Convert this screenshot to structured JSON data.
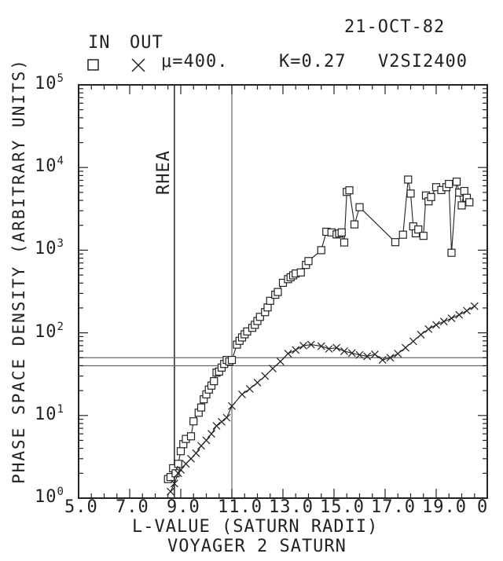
{
  "header": {
    "date": "21-OCT-82",
    "legend_in": "IN",
    "legend_out": "OUT",
    "mu": "μ=400.",
    "k": "K=0.27",
    "id": "V2SI2400"
  },
  "chart_data": {
    "type": "scatter",
    "title": "VOYAGER 2 SATURN",
    "xlabel": "L-VALUE (SATURN RADII)",
    "ylabel": "PHASE SPACE DENSITY (ARBITRARY UNITS)",
    "xlim": [
      5.0,
      21.0
    ],
    "ylim": [
      1,
      100000
    ],
    "y_scale": "log",
    "x_ticks": [
      "5.0",
      "7.0",
      "9.0",
      "11.0",
      "13.0",
      "15.0",
      "17.0",
      "19.0"
    ],
    "y_ticks": [
      {
        "base": "10",
        "exp": "0"
      },
      {
        "base": "10",
        "exp": "1"
      },
      {
        "base": "10",
        "exp": "2"
      },
      {
        "base": "10",
        "exp": "3"
      },
      {
        "base": "10",
        "exp": "4"
      },
      {
        "base": "10",
        "exp": "5"
      }
    ],
    "annotations": {
      "rhea": {
        "label": "RHEA",
        "x": 8.75
      },
      "vline2": {
        "x": 11.0
      },
      "hlines": [
        50,
        40
      ]
    },
    "series": [
      {
        "name": "IN",
        "marker": "square",
        "x": [
          8.5,
          8.6,
          8.7,
          8.8,
          8.9,
          9.0,
          9.1,
          9.2,
          9.4,
          9.5,
          9.7,
          9.8,
          9.9,
          10.0,
          10.1,
          10.2,
          10.3,
          10.4,
          10.5,
          10.6,
          10.7,
          10.8,
          10.9,
          11.0,
          11.2,
          11.3,
          11.4,
          11.5,
          11.6,
          11.8,
          11.9,
          12.0,
          12.1,
          12.3,
          12.4,
          12.5,
          12.7,
          12.8,
          13.0,
          13.2,
          13.3,
          13.4,
          13.5,
          13.7,
          13.9,
          14.0,
          14.5,
          14.7,
          14.9,
          15.1,
          15.2,
          15.3,
          15.4,
          15.5,
          15.6,
          15.8,
          16.0,
          17.4,
          17.7,
          17.9,
          18.0,
          18.1,
          18.2,
          18.3,
          18.5,
          18.6,
          18.7,
          18.8,
          19.0,
          19.2,
          19.4,
          19.5,
          19.6,
          19.8,
          19.9,
          20.0,
          20.1,
          20.2,
          20.3
        ],
        "y": [
          1.7,
          1.8,
          2.3,
          2.0,
          2.6,
          3.7,
          4.5,
          5.2,
          5.6,
          8.5,
          10.8,
          12.5,
          15.7,
          18.0,
          20.6,
          23.0,
          26.0,
          33.0,
          34.0,
          38.0,
          42.0,
          47.0,
          45.0,
          47.0,
          72.0,
          80.0,
          88.0,
          96.0,
          104.0,
          115.0,
          125.0,
          139.0,
          156.0,
          178.0,
          203.0,
          244.0,
          289.0,
          312.0,
          403.0,
          446.0,
          470.0,
          496.0,
          522.0,
          538.0,
          663.0,
          738.0,
          1000.0,
          1670.0,
          1640.0,
          1550.0,
          1590.0,
          1640.0,
          1240.0,
          5070.0,
          5300.0,
          2050.0,
          3310.0,
          1250.0,
          1540.0,
          7150.0,
          4840.0,
          1940.0,
          1600.0,
          1780.0,
          1490.0,
          4590.0,
          3900.0,
          4390.0,
          5780.0,
          5340.0,
          5780.0,
          6330.0,
          930.0,
          6740.0,
          4980.0,
          3480.0,
          5200.0,
          4300.0,
          3800.0
        ]
      },
      {
        "name": "OUT",
        "marker": "x",
        "x": [
          8.6,
          8.75,
          8.9,
          9.0,
          9.2,
          9.4,
          9.6,
          9.8,
          10.0,
          10.2,
          10.4,
          10.6,
          10.8,
          11.0,
          11.4,
          11.7,
          12.0,
          12.3,
          12.6,
          12.9,
          13.2,
          13.5,
          13.8,
          14.1,
          14.5,
          14.8,
          15.1,
          15.4,
          15.7,
          16.0,
          16.3,
          16.6,
          16.9,
          17.2,
          17.5,
          17.8,
          18.1,
          18.4,
          18.7,
          19.0,
          19.3,
          19.6,
          19.9,
          20.2,
          20.5
        ],
        "y": [
          1.2,
          1.5,
          2.0,
          2.2,
          2.6,
          3.0,
          3.5,
          4.3,
          5.0,
          6.0,
          7.5,
          8.4,
          9.4,
          13.0,
          18.0,
          21.0,
          25.0,
          30.0,
          37.0,
          45.0,
          56.0,
          62.0,
          70.0,
          72.0,
          69.0,
          64.0,
          66.0,
          60.0,
          57.0,
          54.0,
          52.0,
          55.0,
          47.0,
          50.0,
          56.0,
          66.0,
          79.0,
          95.0,
          111.0,
          125.0,
          137.0,
          150.0,
          165.0,
          185.0,
          210.0
        ]
      }
    ]
  }
}
